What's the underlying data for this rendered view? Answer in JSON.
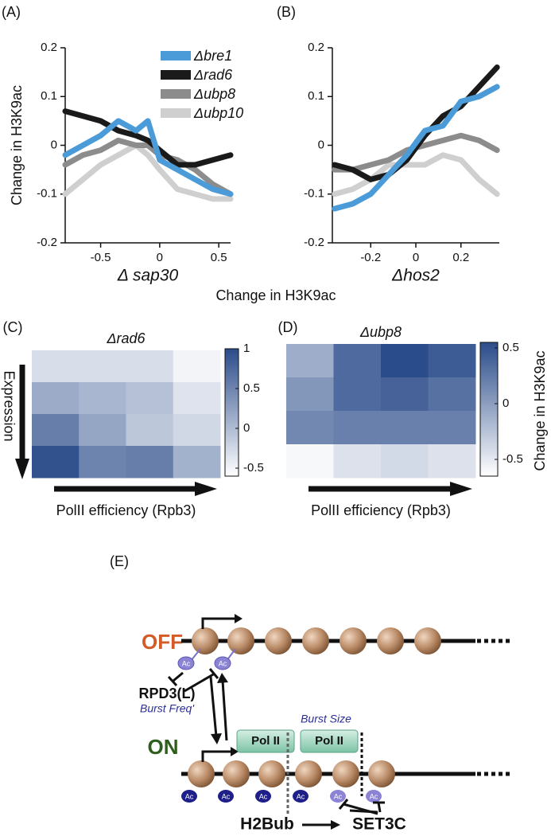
{
  "shared_xlabel": "Change in H3K9ac",
  "chart_data": [
    {
      "type": "line",
      "panel_label": "(A)",
      "xlabel": "Δ sap30",
      "ylabel": "Change in H3K9ac",
      "xlim": [
        -0.8,
        0.6
      ],
      "xticks": [
        -0.5,
        0,
        0.5
      ],
      "ylim": [
        -0.2,
        0.2
      ],
      "yticks": [
        -0.2,
        -0.1,
        0,
        0.1,
        0.2
      ],
      "legend": "top-right",
      "x": [
        -0.8,
        -0.65,
        -0.5,
        -0.35,
        -0.2,
        -0.1,
        0,
        0.15,
        0.3,
        0.45,
        0.6
      ],
      "series": [
        {
          "name": "Δbre1",
          "color": "#4a9bd8",
          "values": [
            -0.02,
            0.0,
            0.02,
            0.05,
            0.03,
            0.05,
            -0.03,
            -0.05,
            -0.07,
            -0.09,
            -0.1
          ]
        },
        {
          "name": "Δrad6",
          "color": "#1a1a1a",
          "values": [
            0.07,
            0.06,
            0.05,
            0.03,
            0.02,
            0.01,
            -0.01,
            -0.04,
            -0.04,
            -0.03,
            -0.02
          ]
        },
        {
          "name": "Δubp8",
          "color": "#8c8c8c",
          "values": [
            -0.04,
            -0.02,
            -0.01,
            0.01,
            0.0,
            0.0,
            -0.02,
            -0.03,
            -0.05,
            -0.08,
            -0.1
          ]
        },
        {
          "name": "Δubp10",
          "color": "#cfcfcf",
          "values": [
            -0.1,
            -0.07,
            -0.04,
            -0.02,
            0.0,
            -0.02,
            -0.05,
            -0.09,
            -0.1,
            -0.11,
            -0.11
          ]
        }
      ]
    },
    {
      "type": "line",
      "panel_label": "(B)",
      "xlabel": "Δhos2",
      "xlim": [
        -0.37,
        0.37
      ],
      "xticks": [
        -0.2,
        0,
        0.2
      ],
      "ylim": [
        -0.2,
        0.2
      ],
      "yticks": [
        -0.2,
        -0.1,
        0,
        0.1,
        0.2
      ],
      "x": [
        -0.36,
        -0.28,
        -0.2,
        -0.12,
        -0.04,
        0.04,
        0.12,
        0.2,
        0.28,
        0.36
      ],
      "series": [
        {
          "color": "#4a9bd8",
          "values": [
            -0.13,
            -0.12,
            -0.1,
            -0.06,
            -0.02,
            0.03,
            0.04,
            0.09,
            0.1,
            0.12
          ]
        },
        {
          "color": "#1a1a1a",
          "values": [
            -0.04,
            -0.05,
            -0.07,
            -0.06,
            -0.03,
            0.02,
            0.06,
            0.08,
            0.12,
            0.16
          ]
        },
        {
          "color": "#8c8c8c",
          "values": [
            -0.05,
            -0.05,
            -0.04,
            -0.03,
            -0.01,
            0.0,
            0.01,
            0.02,
            0.01,
            -0.01
          ]
        },
        {
          "color": "#cfcfcf",
          "values": [
            -0.1,
            -0.09,
            -0.07,
            -0.04,
            -0.04,
            -0.04,
            -0.02,
            -0.03,
            -0.07,
            -0.1
          ]
        }
      ]
    },
    {
      "type": "heatmap",
      "panel_label": "(C)",
      "title": "Δrad6",
      "ylabel": "Expression",
      "xlabel": "PolII efficiency (Rpb3)",
      "zlim": [
        -0.6,
        1
      ],
      "zticks": [
        -0.5,
        0,
        0.5,
        1
      ],
      "color": "#2b4c8a",
      "z": [
        [
          -0.3,
          -0.3,
          -0.3,
          -0.5
        ],
        [
          0.15,
          0.05,
          -0.05,
          -0.35
        ],
        [
          0.55,
          0.2,
          -0.1,
          -0.25
        ],
        [
          0.95,
          0.5,
          0.55,
          0.1
        ]
      ]
    },
    {
      "type": "heatmap",
      "panel_label": "(D)",
      "title": "Δubp8",
      "xlabel": "PolII efficiency (Rpb3)",
      "colorbar_label": "Change in H3K9ac",
      "zlim": [
        -0.65,
        0.55
      ],
      "zticks": [
        -0.5,
        0,
        0.5
      ],
      "color": "#2b4c8a",
      "z": [
        [
          -0.1,
          0.35,
          0.55,
          0.45
        ],
        [
          0.05,
          0.35,
          0.4,
          0.3
        ],
        [
          0.15,
          0.2,
          0.2,
          0.2
        ],
        [
          -0.6,
          -0.45,
          -0.4,
          -0.45
        ]
      ]
    }
  ],
  "diagram": {
    "panel_label": "(E)",
    "off": "OFF",
    "on": "ON",
    "ac": "Ac",
    "repressor": "RPD3(L)",
    "burst_freq": "Burst Freq'",
    "burst_size": "Burst Size",
    "pol": "Pol II",
    "h2bub": "H2Bub",
    "set3c": "SET3C"
  }
}
